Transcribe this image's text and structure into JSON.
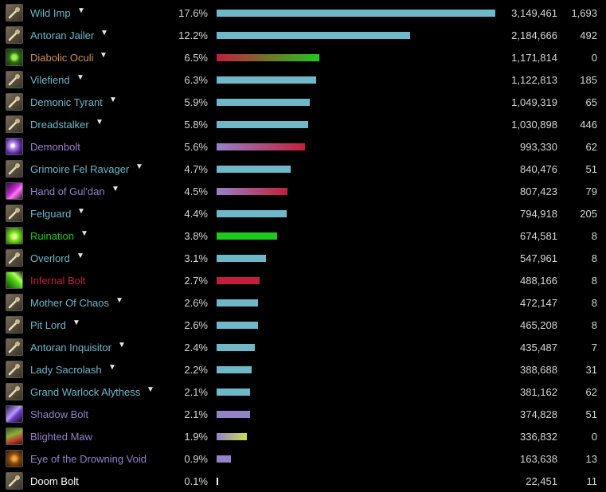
{
  "colors": {
    "pet": "#6fb8c9",
    "warlock_spell": "#9482c9",
    "fel_green": "#1ec81e",
    "infernal_red": "#c41e3a"
  },
  "rows": [
    {
      "name": "Wild Imp",
      "caret": "▼",
      "pct": "17.6%",
      "pct_value": 17.6,
      "amount": "3,149,461",
      "count": "1,693",
      "icon": "pet-icon",
      "name_color": "#6fb8c9",
      "bar": [
        "#6fb8c9",
        "#6fb8c9"
      ]
    },
    {
      "name": "Antoran Jailer",
      "caret": "▼",
      "pct": "12.2%",
      "pct_value": 12.2,
      "amount": "2,184,666",
      "count": "492",
      "icon": "pet-icon",
      "name_color": "#6fb8c9",
      "bar": [
        "#6fb8c9",
        "#6fb8c9"
      ]
    },
    {
      "name": "Diabolic Oculi",
      "caret": "▼",
      "pct": "6.5%",
      "pct_value": 6.5,
      "amount": "1,171,814",
      "count": "0",
      "icon": "oculi-icon",
      "name_color": "#c98f60",
      "bar": [
        "#c41e3a",
        "#1ec81e"
      ]
    },
    {
      "name": "Vilefiend",
      "caret": "▼",
      "pct": "6.3%",
      "pct_value": 6.3,
      "amount": "1,122,813",
      "count": "185",
      "icon": "pet-icon",
      "name_color": "#6fb8c9",
      "bar": [
        "#6fb8c9",
        "#6fb8c9"
      ]
    },
    {
      "name": "Demonic Tyrant",
      "caret": "▼",
      "pct": "5.9%",
      "pct_value": 5.9,
      "amount": "1,049,319",
      "count": "65",
      "icon": "pet-icon",
      "name_color": "#6fb8c9",
      "bar": [
        "#6fb8c9",
        "#6fb8c9"
      ]
    },
    {
      "name": "Dreadstalker",
      "caret": "▼",
      "pct": "5.8%",
      "pct_value": 5.8,
      "amount": "1,030,898",
      "count": "446",
      "icon": "pet-icon",
      "name_color": "#6fb8c9",
      "bar": [
        "#6fb8c9",
        "#6fb8c9"
      ]
    },
    {
      "name": "Demonbolt",
      "caret": "",
      "pct": "5.6%",
      "pct_value": 5.6,
      "amount": "993,330",
      "count": "62",
      "icon": "demonbolt-icon",
      "name_color": "#9482c9",
      "bar": [
        "#9482c9",
        "#c41e3a"
      ]
    },
    {
      "name": "Grimoire Fel Ravager",
      "caret": "▼",
      "pct": "4.7%",
      "pct_value": 4.7,
      "amount": "840,476",
      "count": "51",
      "icon": "pet-icon",
      "name_color": "#6fb8c9",
      "bar": [
        "#6fb8c9",
        "#6fb8c9"
      ]
    },
    {
      "name": "Hand of Gul'dan",
      "caret": "▼",
      "pct": "4.5%",
      "pct_value": 4.5,
      "amount": "807,423",
      "count": "79",
      "icon": "hand-of-guldan-icon",
      "name_color": "#9482c9",
      "bar": [
        "#9482c9",
        "#c41e3a"
      ]
    },
    {
      "name": "Felguard",
      "caret": "▼",
      "pct": "4.4%",
      "pct_value": 4.4,
      "amount": "794,918",
      "count": "205",
      "icon": "pet-icon",
      "name_color": "#6fb8c9",
      "bar": [
        "#6fb8c9",
        "#6fb8c9"
      ]
    },
    {
      "name": "Ruination",
      "caret": "▼",
      "pct": "3.8%",
      "pct_value": 3.8,
      "amount": "674,581",
      "count": "8",
      "icon": "ruination-icon",
      "name_color": "#1ec81e",
      "bar": [
        "#1ec81e",
        "#1ec81e"
      ]
    },
    {
      "name": "Overlord",
      "caret": "▼",
      "pct": "3.1%",
      "pct_value": 3.1,
      "amount": "547,961",
      "count": "8",
      "icon": "pet-icon",
      "name_color": "#6fb8c9",
      "bar": [
        "#6fb8c9",
        "#6fb8c9"
      ]
    },
    {
      "name": "Infernal Bolt",
      "caret": "",
      "pct": "2.7%",
      "pct_value": 2.7,
      "amount": "488,166",
      "count": "8",
      "icon": "infernal-bolt-icon",
      "name_color": "#c41e3a",
      "bar": [
        "#c41e3a",
        "#c41e3a"
      ]
    },
    {
      "name": "Mother Of Chaos",
      "caret": "▼",
      "pct": "2.6%",
      "pct_value": 2.6,
      "amount": "472,147",
      "count": "8",
      "icon": "pet-icon",
      "name_color": "#6fb8c9",
      "bar": [
        "#6fb8c9",
        "#6fb8c9"
      ]
    },
    {
      "name": "Pit Lord",
      "caret": "▼",
      "pct": "2.6%",
      "pct_value": 2.6,
      "amount": "465,208",
      "count": "8",
      "icon": "pet-icon",
      "name_color": "#6fb8c9",
      "bar": [
        "#6fb8c9",
        "#6fb8c9"
      ]
    },
    {
      "name": "Antoran Inquisitor",
      "caret": "▼",
      "pct": "2.4%",
      "pct_value": 2.4,
      "amount": "435,487",
      "count": "7",
      "icon": "pet-icon",
      "name_color": "#6fb8c9",
      "bar": [
        "#6fb8c9",
        "#6fb8c9"
      ]
    },
    {
      "name": "Lady Sacrolash",
      "caret": "▼",
      "pct": "2.2%",
      "pct_value": 2.2,
      "amount": "388,688",
      "count": "31",
      "icon": "pet-icon",
      "name_color": "#6fb8c9",
      "bar": [
        "#6fb8c9",
        "#6fb8c9"
      ]
    },
    {
      "name": "Grand Warlock Alythess",
      "caret": "▼",
      "pct": "2.1%",
      "pct_value": 2.1,
      "amount": "381,162",
      "count": "62",
      "icon": "pet-icon",
      "name_color": "#6fb8c9",
      "bar": [
        "#6fb8c9",
        "#6fb8c9"
      ]
    },
    {
      "name": "Shadow Bolt",
      "caret": "",
      "pct": "2.1%",
      "pct_value": 2.1,
      "amount": "374,828",
      "count": "51",
      "icon": "shadow-bolt-icon",
      "name_color": "#9482c9",
      "bar": [
        "#9482c9",
        "#9482c9"
      ]
    },
    {
      "name": "Blighted Maw",
      "caret": "",
      "pct": "1.9%",
      "pct_value": 1.9,
      "amount": "336,832",
      "count": "0",
      "icon": "blighted-maw-icon",
      "name_color": "#9482c9",
      "bar": [
        "#9482c9",
        "#c7e04a"
      ]
    },
    {
      "name": "Eye of the Drowning Void",
      "caret": "",
      "pct": "0.9%",
      "pct_value": 0.9,
      "amount": "163,638",
      "count": "13",
      "icon": "eye-icon",
      "name_color": "#9482c9",
      "bar": [
        "#9482c9",
        "#9482c9"
      ]
    },
    {
      "name": "Doom Bolt",
      "caret": "",
      "pct": "0.1%",
      "pct_value": 0.1,
      "amount": "22,451",
      "count": "11",
      "icon": "pet-icon",
      "name_color": "#ffffff",
      "bar": [
        "#ffffff",
        "#ffffff"
      ]
    }
  ]
}
